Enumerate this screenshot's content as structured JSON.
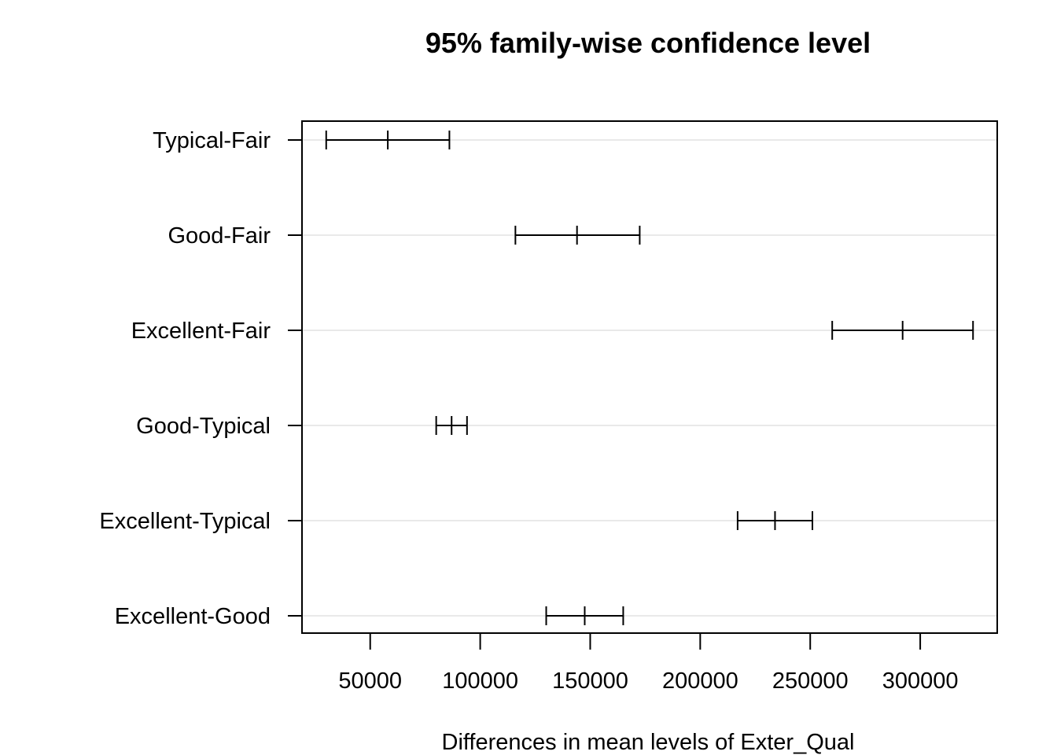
{
  "chart_data": {
    "type": "errorbar",
    "title": "95% family-wise confidence level",
    "xlabel": "Differences in mean levels of Exter_Qual",
    "ylabel": "",
    "xlim": [
      19000,
      335000
    ],
    "xticks": [
      50000,
      100000,
      150000,
      200000,
      250000,
      300000
    ],
    "xtick_labels": [
      "50000",
      "100000",
      "150000",
      "200000",
      "250000",
      "300000"
    ],
    "grid": "horizontal",
    "categories": [
      "Typical-Fair",
      "Good-Fair",
      "Excellent-Fair",
      "Good-Typical",
      "Excellent-Typical",
      "Excellent-Good"
    ],
    "series": [
      {
        "lower": [
          30000,
          116000,
          260000,
          80000,
          217000,
          130000
        ],
        "estimate": [
          58000,
          144000,
          292000,
          87000,
          234000,
          147500
        ],
        "upper": [
          86000,
          172500,
          324000,
          94000,
          251000,
          165000
        ]
      }
    ]
  }
}
